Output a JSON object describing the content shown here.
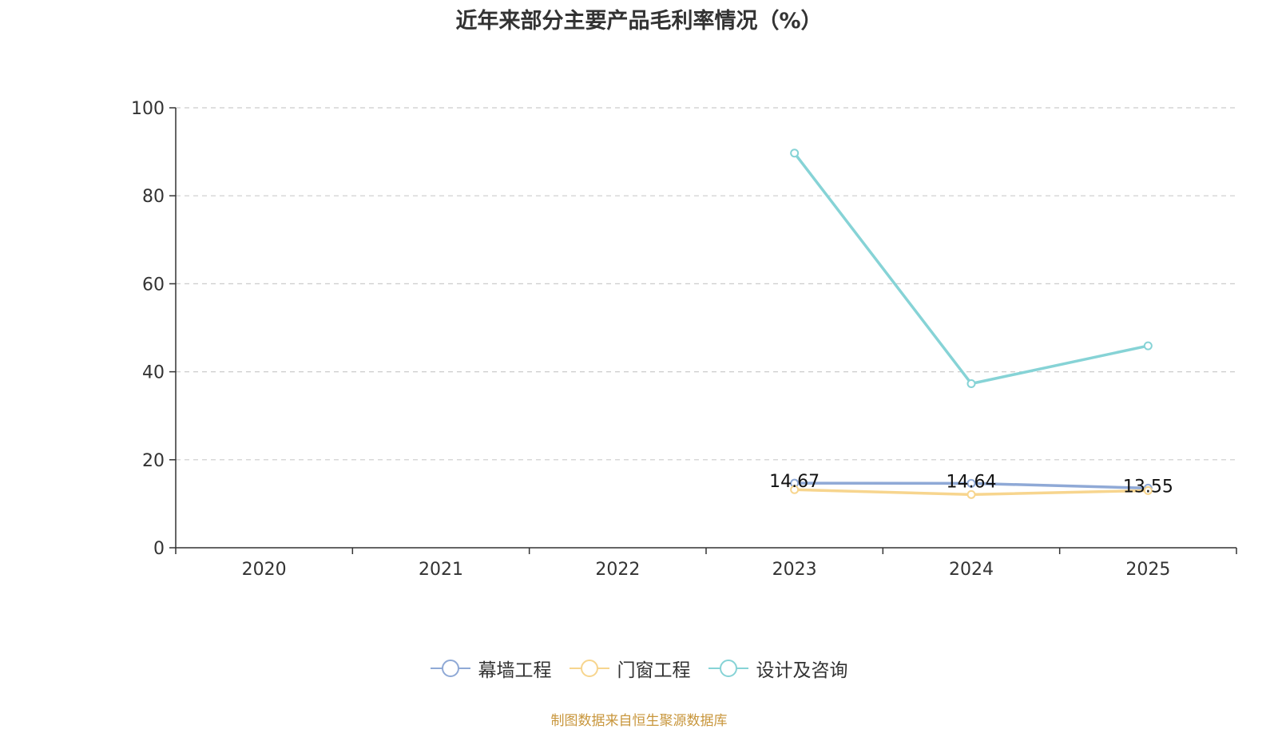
{
  "chart_data": {
    "type": "line",
    "title": "近年来部分主要产品毛利率情况（%）",
    "categories": [
      "2020",
      "2021",
      "2022",
      "2023",
      "2024",
      "2025"
    ],
    "ylim": [
      0,
      100
    ],
    "yticks": [
      0,
      20,
      40,
      60,
      80,
      100
    ],
    "grid": true,
    "legend_position": "bottom",
    "series": [
      {
        "name": "幕墙工程",
        "color": "#8fa9d6",
        "values": [
          null,
          null,
          null,
          14.67,
          14.64,
          13.55
        ],
        "labels": [
          "",
          "",
          "",
          "14.67",
          "14.64",
          "13.55"
        ]
      },
      {
        "name": "门窗工程",
        "color": "#f7d58e",
        "values": [
          null,
          null,
          null,
          13.2,
          12.1,
          13.0
        ]
      },
      {
        "name": "设计及咨询",
        "color": "#86d3d6",
        "values": [
          null,
          null,
          null,
          89.7,
          37.3,
          45.9
        ]
      }
    ]
  },
  "source": "制图数据来自恒生聚源数据库"
}
